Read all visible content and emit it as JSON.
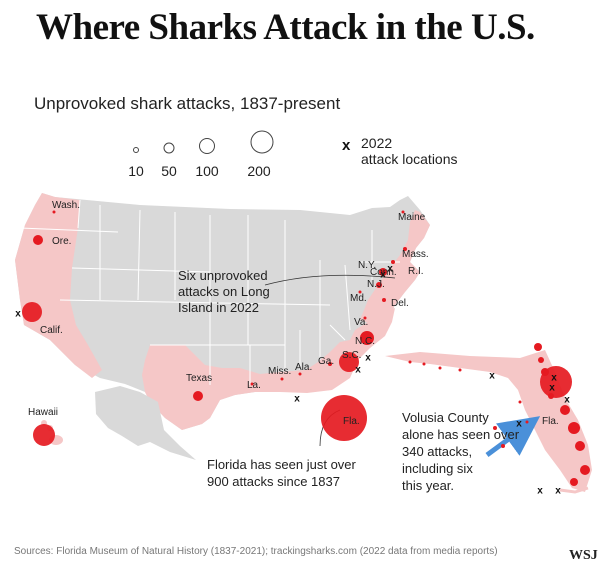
{
  "title": "Where Sharks Attack in the U.S.",
  "subtitle": "Unprovoked shark attacks, 1837-present",
  "legend": {
    "sizes": [
      {
        "label": "10",
        "value": 10
      },
      {
        "label": "50",
        "value": 50
      },
      {
        "label": "100",
        "value": 100
      },
      {
        "label": "200",
        "value": 200
      }
    ],
    "marker_symbol": "x",
    "marker_label_line1": "2022",
    "marker_label_line2": "attack locations"
  },
  "state_labels": {
    "wash": "Wash.",
    "ore": "Ore.",
    "calif": "Calif.",
    "texas": "Texas",
    "la": "La.",
    "miss": "Miss.",
    "ala": "Ala.",
    "ga": "Ga.",
    "sc": "S.C.",
    "nc": "N.C.",
    "va": "Va.",
    "md": "Md.",
    "del": "Del.",
    "nj": "N.J.",
    "ny": "N.Y.",
    "conn": "Conn.",
    "ri": "R.I.",
    "mass": "Mass.",
    "maine": "Maine",
    "hawaii": "Hawaii",
    "fla": "Fla.",
    "fla_inset": "Fla."
  },
  "annotations": {
    "long_island": [
      "Six unprovoked",
      "attacks on Long",
      "Island in 2022"
    ],
    "florida": [
      "Florida has seen just over",
      "900 attacks since 1837"
    ],
    "volusia": [
      "Volusia County",
      "alone has seen over",
      "340 attacks,",
      "including six",
      "this year."
    ]
  },
  "attack_counts": [
    {
      "state": "Florida",
      "value": 900,
      "note": "just over"
    },
    {
      "state": "Volusia County",
      "value": 340,
      "note": "over"
    }
  ],
  "colors": {
    "circle": "#e51a21",
    "state_highlight": "#f5c7c7",
    "state_base": "#d9d9d9",
    "border": "#ffffff",
    "arrow": "#4a90d9"
  },
  "source": "Sources: Florida Museum of Natural History (1837-2021); trackingsharks.com (2022 data from media reports)",
  "logo": "WSJ"
}
